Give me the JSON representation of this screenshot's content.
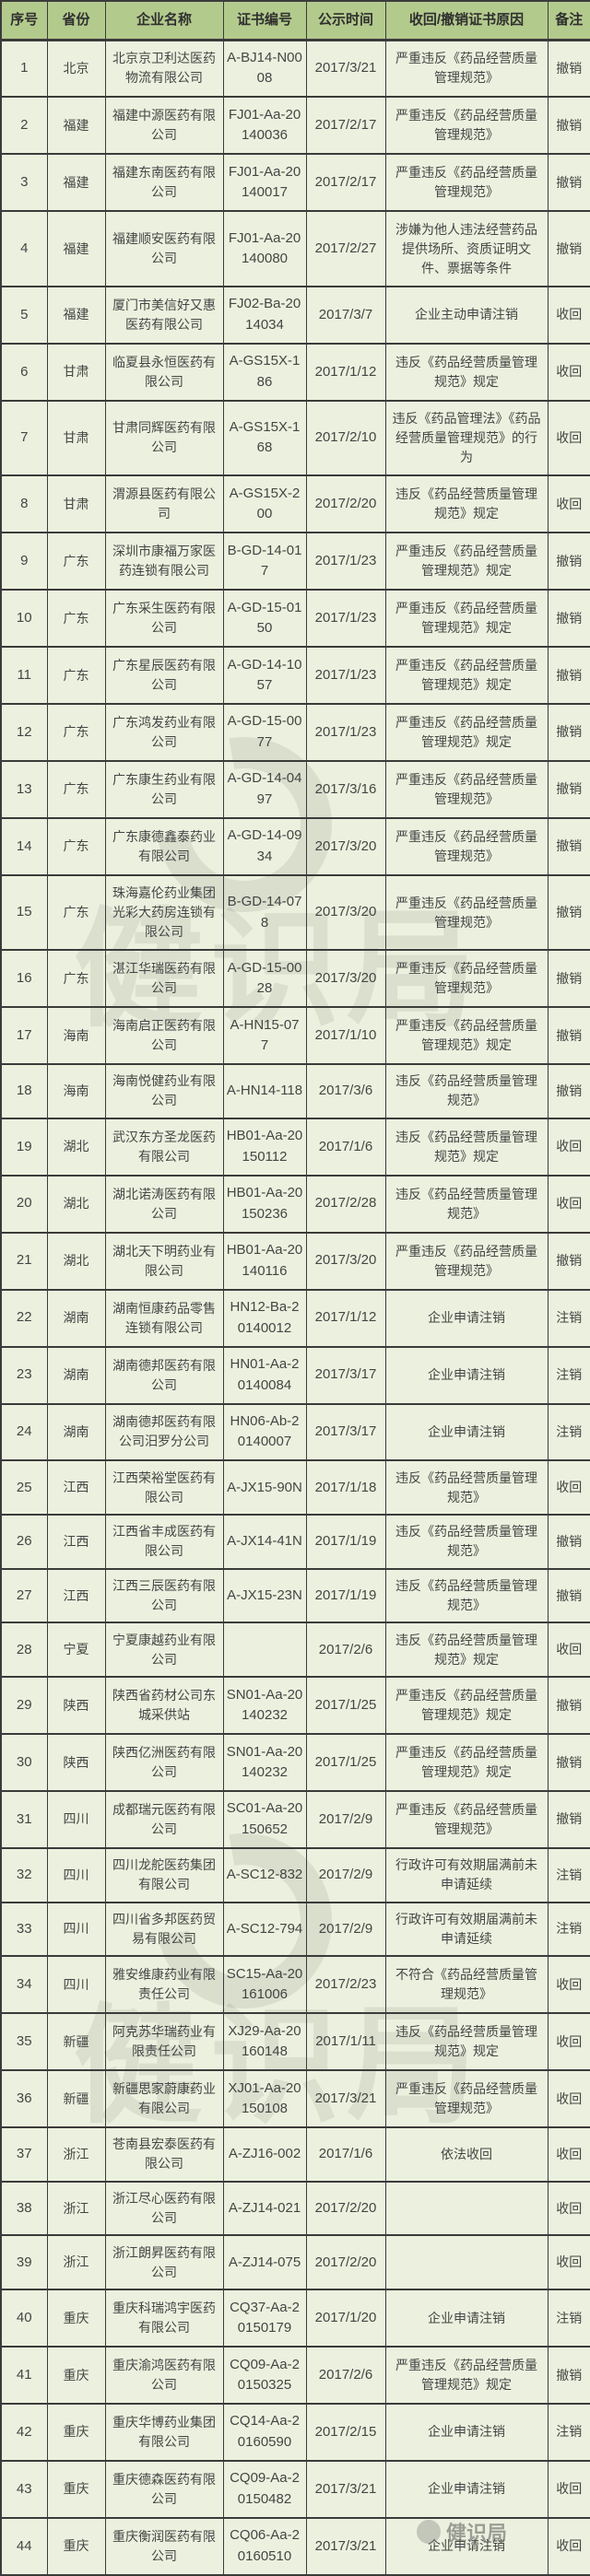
{
  "colors": {
    "header_bg": "#b3ca8d",
    "cell_bg": "#ebf1de",
    "border": "#3b3b3b",
    "text": "#454545"
  },
  "watermark": {
    "text": "健识局"
  },
  "table": {
    "columns": [
      {
        "key": "no",
        "label": "序号"
      },
      {
        "key": "province",
        "label": "省份"
      },
      {
        "key": "company",
        "label": "企业名称"
      },
      {
        "key": "cert",
        "label": "证书编号"
      },
      {
        "key": "date",
        "label": "公示时间"
      },
      {
        "key": "reason",
        "label": "收回/撤销证书原因"
      },
      {
        "key": "note",
        "label": "备注"
      }
    ],
    "rows": [
      {
        "no": "1",
        "province": "北京",
        "company": "北京京卫利达医药物流有限公司",
        "cert": "A-BJ14-N0008",
        "date": "2017/3/21",
        "reason": "严重违反《药品经营质量管理规范》",
        "note": "撤销"
      },
      {
        "no": "2",
        "province": "福建",
        "company": "福建中源医药有限公司",
        "cert": "FJ01-Aa-20140036",
        "date": "2017/2/17",
        "reason": "严重违反《药品经营质量管理规范》",
        "note": "撤销"
      },
      {
        "no": "3",
        "province": "福建",
        "company": "福建东南医药有限公司",
        "cert": "FJ01-Aa-20140017",
        "date": "2017/2/17",
        "reason": "严重违反《药品经营质量管理规范》",
        "note": "撤销"
      },
      {
        "no": "4",
        "province": "福建",
        "company": "福建顺安医药有限公司",
        "cert": "FJ01-Aa-20140080",
        "date": "2017/2/27",
        "reason": "涉嫌为他人违法经营药品提供场所、资质证明文件、票据等条件",
        "note": "撤销"
      },
      {
        "no": "5",
        "province": "福建",
        "company": "厦门市美信好又惠医药有限公司",
        "cert": "FJ02-Ba-2014034",
        "date": "2017/3/7",
        "reason": "企业主动申请注销",
        "note": "收回"
      },
      {
        "no": "6",
        "province": "甘肃",
        "company": "临夏县永恒医药有限公司",
        "cert": "A-GS15X-186",
        "date": "2017/1/12",
        "reason": "违反《药品经营质量管理规范》规定",
        "note": "收回"
      },
      {
        "no": "7",
        "province": "甘肃",
        "company": "甘肃同辉医药有限公司",
        "cert": "A-GS15X-168",
        "date": "2017/2/10",
        "reason": "违反《药品管理法》《药品经营质量管理规范》的行为",
        "note": "收回"
      },
      {
        "no": "8",
        "province": "甘肃",
        "company": "渭源县医药有限公司",
        "cert": "A-GS15X-200",
        "date": "2017/2/20",
        "reason": "违反《药品经营质量管理规范》规定",
        "note": "收回"
      },
      {
        "no": "9",
        "province": "广东",
        "company": "深圳市康福万家医药连锁有限公司",
        "cert": "B-GD-14-017",
        "date": "2017/1/23",
        "reason": "严重违反《药品经营质量管理规范》规定",
        "note": "撤销"
      },
      {
        "no": "10",
        "province": "广东",
        "company": "广东采生医药有限公司",
        "cert": "A-GD-15-0150",
        "date": "2017/1/23",
        "reason": "严重违反《药品经营质量管理规范》规定",
        "note": "撤销"
      },
      {
        "no": "11",
        "province": "广东",
        "company": "广东星辰医药有限公司",
        "cert": "A-GD-14-1057",
        "date": "2017/1/23",
        "reason": "严重违反《药品经营质量管理规范》规定",
        "note": "撤销"
      },
      {
        "no": "12",
        "province": "广东",
        "company": "广东鸿发药业有限公司",
        "cert": "A-GD-15-0077",
        "date": "2017/1/23",
        "reason": "严重违反《药品经营质量管理规范》规定",
        "note": "撤销"
      },
      {
        "no": "13",
        "province": "广东",
        "company": "广东康生药业有限公司",
        "cert": "A-GD-14-0497",
        "date": "2017/3/16",
        "reason": "严重违反《药品经营质量管理规范》",
        "note": "撤销"
      },
      {
        "no": "14",
        "province": "广东",
        "company": "广东康德鑫泰药业有限公司",
        "cert": "A-GD-14-0934",
        "date": "2017/3/20",
        "reason": "严重违反《药品经营质量管理规范》",
        "note": "撤销"
      },
      {
        "no": "15",
        "province": "广东",
        "company": "珠海嘉伦药业集团光彩大药房连锁有限公司",
        "cert": "B-GD-14-078",
        "date": "2017/3/20",
        "reason": "严重违反《药品经营质量管理规范》",
        "note": "撤销"
      },
      {
        "no": "16",
        "province": "广东",
        "company": "湛江华瑞医药有限公司",
        "cert": "A-GD-15-0028",
        "date": "2017/3/20",
        "reason": "严重违反《药品经营质量管理规范》",
        "note": "撤销"
      },
      {
        "no": "17",
        "province": "海南",
        "company": "海南启正医药有限公司",
        "cert": "A-HN15-077",
        "date": "2017/1/10",
        "reason": "严重违反《药品经营质量管理规范》规定",
        "note": "撤销"
      },
      {
        "no": "18",
        "province": "海南",
        "company": "海南悦健药业有限公司",
        "cert": "A-HN14-118",
        "date": "2017/3/6",
        "reason": "违反《药品经营质量管理规范》",
        "note": "撤销"
      },
      {
        "no": "19",
        "province": "湖北",
        "company": "武汉东方圣龙医药有限公司",
        "cert": "HB01-Aa-20150112",
        "date": "2017/1/6",
        "reason": "违反《药品经营质量管理规范》规定",
        "note": "收回"
      },
      {
        "no": "20",
        "province": "湖北",
        "company": "湖北诺涛医药有限公司",
        "cert": "HB01-Aa-20150236",
        "date": "2017/2/28",
        "reason": "违反《药品经营质量管理规范》",
        "note": "收回"
      },
      {
        "no": "21",
        "province": "湖北",
        "company": "湖北天下明药业有限公司",
        "cert": "HB01-Aa-20140116",
        "date": "2017/3/20",
        "reason": "严重违反《药品经营质量管理规范》",
        "note": "撤销"
      },
      {
        "no": "22",
        "province": "湖南",
        "company": "湖南恒康药品零售连锁有限公司",
        "cert": "HN12-Ba-20140012",
        "date": "2017/1/12",
        "reason": "企业申请注销",
        "note": "注销"
      },
      {
        "no": "23",
        "province": "湖南",
        "company": "湖南德邦医药有限公司",
        "cert": "HN01-Aa-20140084",
        "date": "2017/3/17",
        "reason": "企业申请注销",
        "note": "注销"
      },
      {
        "no": "24",
        "province": "湖南",
        "company": "湖南德邦医药有限公司汨罗分公司",
        "cert": "HN06-Ab-20140007",
        "date": "2017/3/17",
        "reason": "企业申请注销",
        "note": "注销"
      },
      {
        "no": "25",
        "province": "江西",
        "company": "江西荣裕堂医药有限公司",
        "cert": "A-JX15-90N",
        "date": "2017/1/18",
        "reason": "违反《药品经营质量管理规范》",
        "note": "收回"
      },
      {
        "no": "26",
        "province": "江西",
        "company": "江西省丰成医药有限公司",
        "cert": "A-JX14-41N",
        "date": "2017/1/19",
        "reason": "违反《药品经营质量管理规范》",
        "note": "撤销"
      },
      {
        "no": "27",
        "province": "江西",
        "company": "江西三辰医药有限公司",
        "cert": "A-JX15-23N",
        "date": "2017/1/19",
        "reason": "违反《药品经营质量管理规范》",
        "note": "撤销"
      },
      {
        "no": "28",
        "province": "宁夏",
        "company": "宁夏康越药业有限公司",
        "cert": "",
        "date": "2017/2/6",
        "reason": "违反《药品经营质量管理规范》规定",
        "note": "收回"
      },
      {
        "no": "29",
        "province": "陕西",
        "company": "陕西省药材公司东城采供站",
        "cert": "SN01-Aa-20140232",
        "date": "2017/1/25",
        "reason": "严重违反《药品经营质量管理规范》规定",
        "note": "撤销"
      },
      {
        "no": "30",
        "province": "陕西",
        "company": "陕西亿洲医药有限公司",
        "cert": "SN01-Aa-20140232",
        "date": "2017/1/25",
        "reason": "严重违反《药品经营质量管理规范》规定",
        "note": "撤销"
      },
      {
        "no": "31",
        "province": "四川",
        "company": "成都瑞元医药有限公司",
        "cert": "SC01-Aa-20150652",
        "date": "2017/2/9",
        "reason": "严重违反《药品经营质量管理规范》",
        "note": "撤销"
      },
      {
        "no": "32",
        "province": "四川",
        "company": "四川龙舵医药集团有限公司",
        "cert": "A-SC12-832",
        "date": "2017/2/9",
        "reason": "行政许可有效期届满前未申请延续",
        "note": "注销"
      },
      {
        "no": "33",
        "province": "四川",
        "company": "四川省多邦医药贸易有限公司",
        "cert": "A-SC12-794",
        "date": "2017/2/9",
        "reason": "行政许可有效期届满前未申请延续",
        "note": "注销"
      },
      {
        "no": "34",
        "province": "四川",
        "company": "雅安维康药业有限责任公司",
        "cert": "SC15-Aa-20161006",
        "date": "2017/2/23",
        "reason": "不符合《药品经营质量管理规范》",
        "note": "收回"
      },
      {
        "no": "35",
        "province": "新疆",
        "company": "阿克苏华瑞药业有限责任公司",
        "cert": "XJ29-Aa-20160148",
        "date": "2017/1/11",
        "reason": "违反《药品经营质量管理规范》规定",
        "note": "收回"
      },
      {
        "no": "36",
        "province": "新疆",
        "company": "新疆思家蔚康药业有限公司",
        "cert": "XJ01-Aa-20150108",
        "date": "2017/3/21",
        "reason": "严重违反《药品经营质量管理规范》",
        "note": "收回"
      },
      {
        "no": "37",
        "province": "浙江",
        "company": "苍南县宏泰医药有限公司",
        "cert": "A-ZJ16-002",
        "date": "2017/1/6",
        "reason": "依法收回",
        "note": "收回"
      },
      {
        "no": "38",
        "province": "浙江",
        "company": "浙江尽心医药有限公司",
        "cert": "A-ZJ14-021",
        "date": "2017/2/20",
        "reason": "",
        "note": "收回"
      },
      {
        "no": "39",
        "province": "浙江",
        "company": "浙江朗昇医药有限公司",
        "cert": "A-ZJ14-075",
        "date": "2017/2/20",
        "reason": "",
        "note": "收回"
      },
      {
        "no": "40",
        "province": "重庆",
        "company": "重庆科瑞鸿宇医药有限公司",
        "cert": "CQ37-Aa-20150179",
        "date": "2017/1/20",
        "reason": "企业申请注销",
        "note": "注销"
      },
      {
        "no": "41",
        "province": "重庆",
        "company": "重庆渝鸿医药有限公司",
        "cert": "CQ09-Aa-20150325",
        "date": "2017/2/6",
        "reason": "严重违反《药品经营质量管理规范》规定",
        "note": "撤销"
      },
      {
        "no": "42",
        "province": "重庆",
        "company": "重庆华博药业集团有限公司",
        "cert": "CQ14-Aa-20160590",
        "date": "2017/2/15",
        "reason": "企业申请注销",
        "note": "注销"
      },
      {
        "no": "43",
        "province": "重庆",
        "company": "重庆德森医药有限公司",
        "cert": "CQ09-Aa-20150482",
        "date": "2017/3/21",
        "reason": "企业申请注销",
        "note": "收回"
      },
      {
        "no": "44",
        "province": "重庆",
        "company": "重庆衡润医药有限公司",
        "cert": "CQ06-Aa-20160510",
        "date": "2017/3/21",
        "reason": "企业申请注销",
        "note": "收回"
      }
    ]
  }
}
